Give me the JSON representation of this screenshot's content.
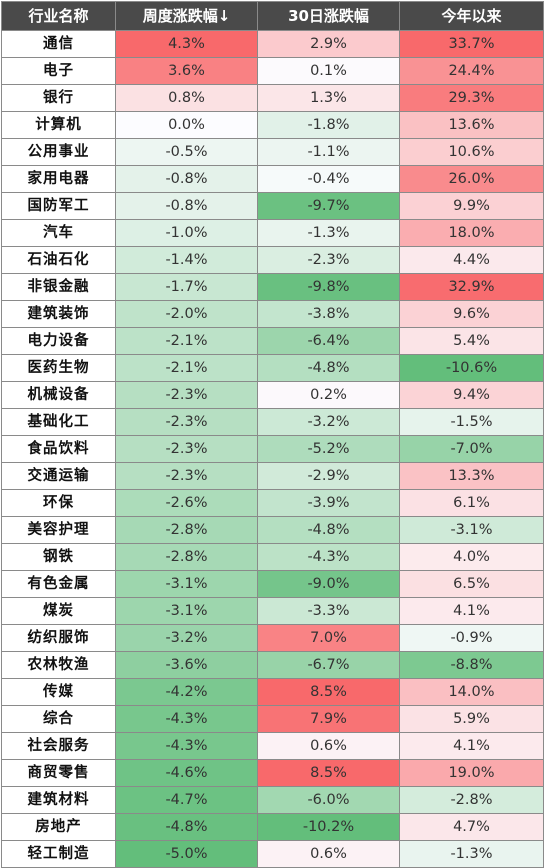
{
  "chart_data": {
    "type": "table",
    "columns": [
      "行业名称",
      "周度涨跌幅↓",
      "30日涨跌幅",
      "今年以来"
    ],
    "rows": [
      {
        "name": "通信",
        "week": "4.3%",
        "d30": "2.9%",
        "ytd": "33.7%"
      },
      {
        "name": "电子",
        "week": "3.6%",
        "d30": "0.1%",
        "ytd": "24.4%"
      },
      {
        "name": "银行",
        "week": "0.8%",
        "d30": "1.3%",
        "ytd": "29.3%"
      },
      {
        "name": "计算机",
        "week": "0.0%",
        "d30": "-1.8%",
        "ytd": "13.6%"
      },
      {
        "name": "公用事业",
        "week": "-0.5%",
        "d30": "-1.1%",
        "ytd": "10.6%"
      },
      {
        "name": "家用电器",
        "week": "-0.8%",
        "d30": "-0.4%",
        "ytd": "26.0%"
      },
      {
        "name": "国防军工",
        "week": "-0.8%",
        "d30": "-9.7%",
        "ytd": "9.9%"
      },
      {
        "name": "汽车",
        "week": "-1.0%",
        "d30": "-1.3%",
        "ytd": "18.0%"
      },
      {
        "name": "石油石化",
        "week": "-1.4%",
        "d30": "-2.3%",
        "ytd": "4.4%"
      },
      {
        "name": "非银金融",
        "week": "-1.7%",
        "d30": "-9.8%",
        "ytd": "32.9%"
      },
      {
        "name": "建筑装饰",
        "week": "-2.0%",
        "d30": "-3.8%",
        "ytd": "9.6%"
      },
      {
        "name": "电力设备",
        "week": "-2.1%",
        "d30": "-6.4%",
        "ytd": "5.4%"
      },
      {
        "name": "医药生物",
        "week": "-2.1%",
        "d30": "-4.8%",
        "ytd": "-10.6%"
      },
      {
        "name": "机械设备",
        "week": "-2.3%",
        "d30": "0.2%",
        "ytd": "9.4%"
      },
      {
        "name": "基础化工",
        "week": "-2.3%",
        "d30": "-3.2%",
        "ytd": "-1.5%"
      },
      {
        "name": "食品饮料",
        "week": "-2.3%",
        "d30": "-5.2%",
        "ytd": "-7.0%"
      },
      {
        "name": "交通运输",
        "week": "-2.3%",
        "d30": "-2.9%",
        "ytd": "13.3%"
      },
      {
        "name": "环保",
        "week": "-2.6%",
        "d30": "-3.9%",
        "ytd": "6.1%"
      },
      {
        "name": "美容护理",
        "week": "-2.8%",
        "d30": "-4.8%",
        "ytd": "-3.1%"
      },
      {
        "name": "钢铁",
        "week": "-2.8%",
        "d30": "-4.3%",
        "ytd": "4.0%"
      },
      {
        "name": "有色金属",
        "week": "-3.1%",
        "d30": "-9.0%",
        "ytd": "6.5%"
      },
      {
        "name": "煤炭",
        "week": "-3.1%",
        "d30": "-3.3%",
        "ytd": "4.1%"
      },
      {
        "name": "纺织服饰",
        "week": "-3.2%",
        "d30": "7.0%",
        "ytd": "-0.9%"
      },
      {
        "name": "农林牧渔",
        "week": "-3.6%",
        "d30": "-6.7%",
        "ytd": "-8.8%"
      },
      {
        "name": "传媒",
        "week": "-4.2%",
        "d30": "8.5%",
        "ytd": "14.0%"
      },
      {
        "name": "综合",
        "week": "-4.3%",
        "d30": "7.9%",
        "ytd": "5.9%"
      },
      {
        "name": "社会服务",
        "week": "-4.3%",
        "d30": "0.6%",
        "ytd": "4.1%"
      },
      {
        "name": "商贸零售",
        "week": "-4.6%",
        "d30": "8.5%",
        "ytd": "19.0%"
      },
      {
        "name": "建筑材料",
        "week": "-4.7%",
        "d30": "-6.0%",
        "ytd": "-2.8%"
      },
      {
        "name": "房地产",
        "week": "-4.8%",
        "d30": "-10.2%",
        "ytd": "4.7%"
      },
      {
        "name": "轻工制造",
        "week": "-5.0%",
        "d30": "0.6%",
        "ytd": "-1.3%"
      }
    ],
    "sort": {
      "column": "周度涨跌幅↓",
      "order": "descending"
    },
    "color_scale": {
      "positive": "#f8696b",
      "neutral": "#fcfcff",
      "negative": "#63be7b"
    }
  }
}
